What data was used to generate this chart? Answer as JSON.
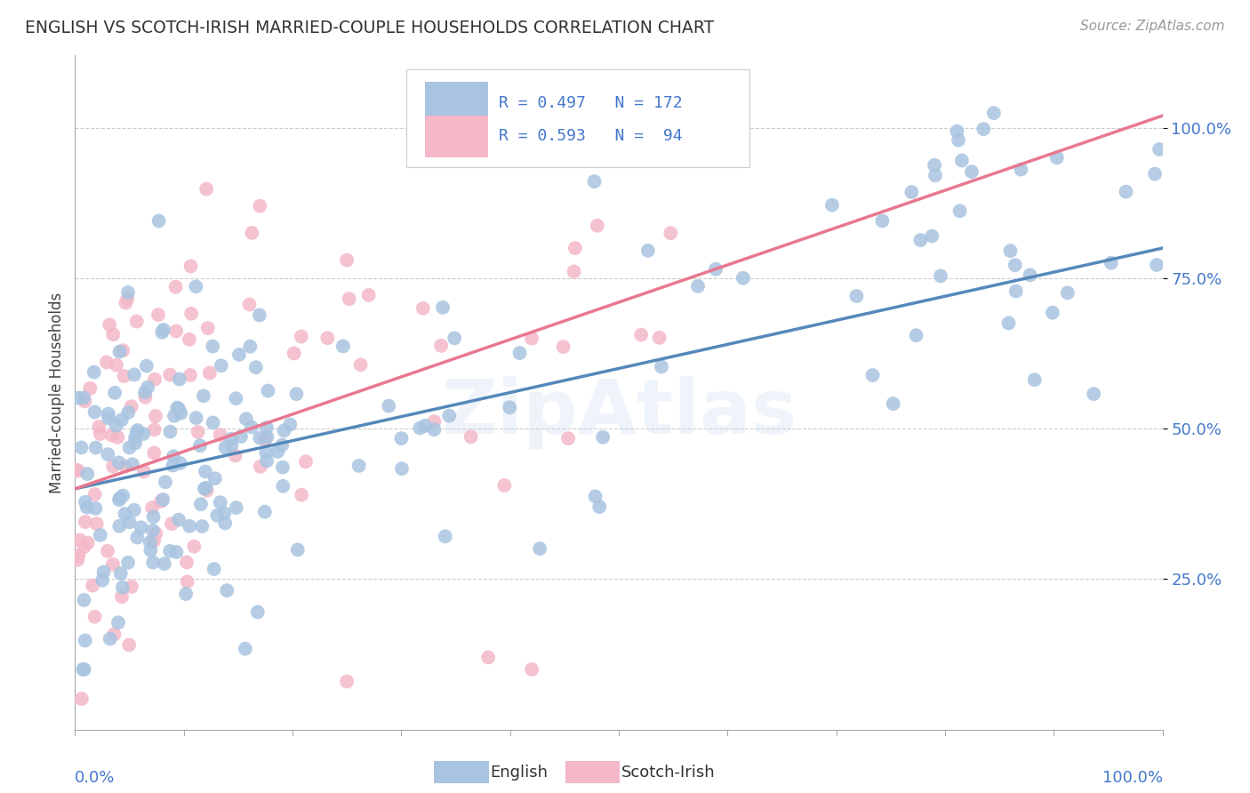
{
  "title": "ENGLISH VS SCOTCH-IRISH MARRIED-COUPLE HOUSEHOLDS CORRELATION CHART",
  "source": "Source: ZipAtlas.com",
  "ylabel": "Married-couple Households",
  "ytick_labels": [
    "25.0%",
    "50.0%",
    "75.0%",
    "100.0%"
  ],
  "ytick_values": [
    0.25,
    0.5,
    0.75,
    1.0
  ],
  "english_color": "#a8c4e0",
  "scotch_color": "#f4b8c8",
  "english_line_color": "#5588bb",
  "scotch_line_color": "#e87890",
  "label_color": "#4477cc",
  "background_color": "#ffffff",
  "english_R": 0.497,
  "english_N": 172,
  "scotch_R": 0.593,
  "scotch_N": 94,
  "eng_line_x0": 0.0,
  "eng_line_y0": 0.4,
  "eng_line_x1": 1.0,
  "eng_line_y1": 0.8,
  "si_line_x0": 0.0,
  "si_line_y0": 0.4,
  "si_line_x1": 1.0,
  "si_line_y1": 1.02,
  "xlim": [
    0.0,
    1.0
  ],
  "ylim": [
    0.0,
    1.12
  ]
}
